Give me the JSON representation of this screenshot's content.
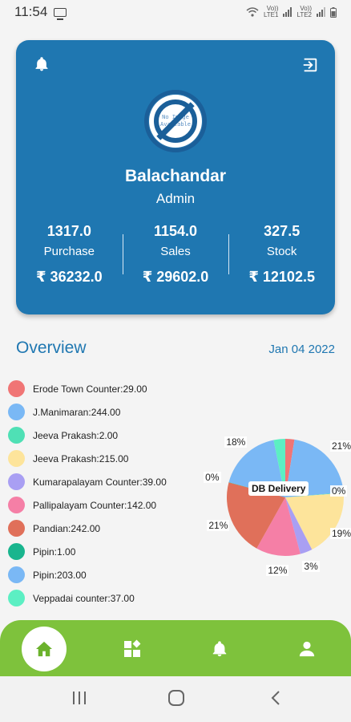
{
  "status_bar": {
    "time": "11:54",
    "carrier_1": "Vo))\nLTE1",
    "carrier_2": "Vo))\nLTE2"
  },
  "profile": {
    "avatar_placeholder": "No Image Available",
    "name": "Balachandar",
    "role": "Admin",
    "stats": [
      {
        "qty": "1317.0",
        "label": "Purchase",
        "amount": "₹ 36232.0"
      },
      {
        "qty": "1154.0",
        "label": "Sales",
        "amount": "₹ 29602.0"
      },
      {
        "qty": "327.5",
        "label": "Stock",
        "amount": "₹ 12102.5"
      }
    ]
  },
  "overview": {
    "title": "Overview",
    "date": "Jan 04 2022",
    "legend": [
      {
        "label": "Erode Town Counter:29.00",
        "color": "#f07575"
      },
      {
        "label": "J.Manimaran:244.00",
        "color": "#7ab8f5"
      },
      {
        "label": "Jeeva Prakash:2.00",
        "color": "#4fe0b5"
      },
      {
        "label": "Jeeva Prakash:215.00",
        "color": "#fde49b"
      },
      {
        "label": "Kumarapalayam Counter:39.00",
        "color": "#a99ff3"
      },
      {
        "label": "Pallipalayam Counter:142.00",
        "color": "#f57fa6"
      },
      {
        "label": "Pandian:242.00",
        "color": "#e0705a"
      },
      {
        "label": "Pipin:1.00",
        "color": "#19b58e"
      },
      {
        "label": "Pipin:203.00",
        "color": "#7ab8f5"
      },
      {
        "label": "Veppadai counter:37.00",
        "color": "#5cefc3"
      }
    ]
  },
  "chart_data": {
    "type": "pie",
    "center_label": "DB Delivery",
    "slices": [
      {
        "value": 29.0,
        "color": "#f07575",
        "pct": ""
      },
      {
        "value": 244.0,
        "color": "#7ab8f5",
        "pct": "21%"
      },
      {
        "value": 2.0,
        "color": "#4fe0b5",
        "pct": "0%"
      },
      {
        "value": 215.0,
        "color": "#fde49b",
        "pct": "19%"
      },
      {
        "value": 39.0,
        "color": "#a99ff3",
        "pct": "3%"
      },
      {
        "value": 142.0,
        "color": "#f57fa6",
        "pct": "12%"
      },
      {
        "value": 242.0,
        "color": "#e0705a",
        "pct": "21%"
      },
      {
        "value": 1.0,
        "color": "#19b58e",
        "pct": "0%"
      },
      {
        "value": 203.0,
        "color": "#7ab8f5",
        "pct": "18%"
      },
      {
        "value": 37.0,
        "color": "#5cefc3",
        "pct": ""
      }
    ]
  },
  "icons": {
    "top_left": "bell-icon",
    "top_right": "logout-icon",
    "nav": [
      "home-icon",
      "dashboard-icon",
      "bell-icon",
      "person-icon"
    ],
    "system": [
      "recent-apps-icon",
      "home-circle-icon",
      "back-icon"
    ]
  },
  "colors": {
    "card": "#1f77b1",
    "accent": "#1f77b1",
    "nav": "#7ec23c"
  }
}
